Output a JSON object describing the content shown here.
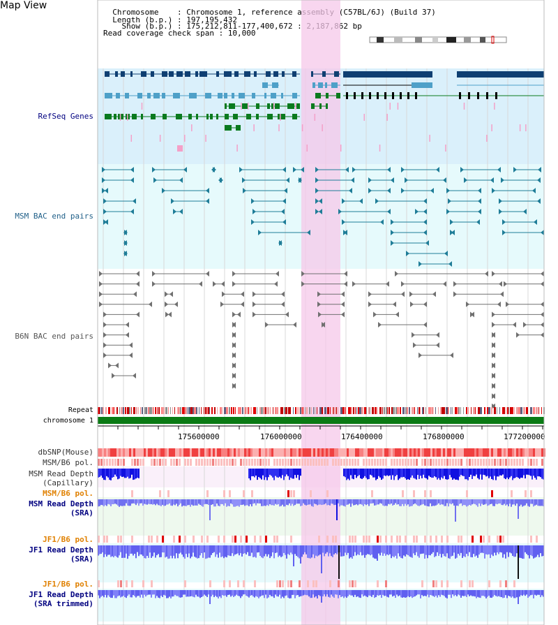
{
  "page_title": "Map View",
  "info": {
    "chromosome_line": "  Chromosome    : Chromosome 1, reference assembly (C57BL/6J) (Build 37)",
    "length_line": "  Length (b.p.) : 197,195,432",
    "show_line": "    Show (b.p.) : 175,212,811-177,400,672 : 2,187,862 bp",
    "coverage_line": "Read coverage check span : 10,000"
  },
  "tracks": {
    "refseq": "RefSeq Genes",
    "msm_bac": "MSM BAC end pairs",
    "b6n_bac": "B6N BAC end pairs",
    "repeat": "Repeat",
    "chromosome": "chromosome 1",
    "dbsnp": "dbSNP(Mouse)",
    "msm_b6_pol": "MSM/B6 pol.",
    "msm_depth_cap_1": "MSM Read Depth",
    "msm_depth_cap_2": "(Capillary)",
    "msm_b6_pol_2": "MSM/B6 pol.",
    "msm_depth_sra_1": "MSM Read Depth",
    "msm_depth_sra_2": "(SRA)",
    "jf1_b6_pol": "JF1/B6 pol.",
    "jf1_depth_sra_1": "JF1 Read Depth",
    "jf1_depth_sra_2": "(SRA)",
    "jf1_b6_pol_2": "JF1/B6 pol.",
    "jf1_depth_trim_1": "JF1 Read Depth",
    "jf1_depth_trim_2": "(SRA trimmed)"
  },
  "axis_ticks": [
    "175600000",
    "176000000",
    "176400000",
    "176800000",
    "177200000"
  ],
  "colors": {
    "refseq_bg": "#daf0fb",
    "bac_bg": "#e6fafc",
    "highlight": "#f6c8ea",
    "gene_dark": "#0e3f72",
    "gene_mid": "#4ea0c8",
    "gene_green": "#0a7a1e",
    "gene_pink": "#f4a0c8",
    "msm_line": "#1f7d98",
    "b6n_line": "#707070",
    "chrom_green": "#0a7a14",
    "snp_red": "#f08080",
    "depth_dark": "#1010e0",
    "depth_light": "#8080f0",
    "label_navy": "#000080",
    "label_orange": "#e08000"
  }
}
